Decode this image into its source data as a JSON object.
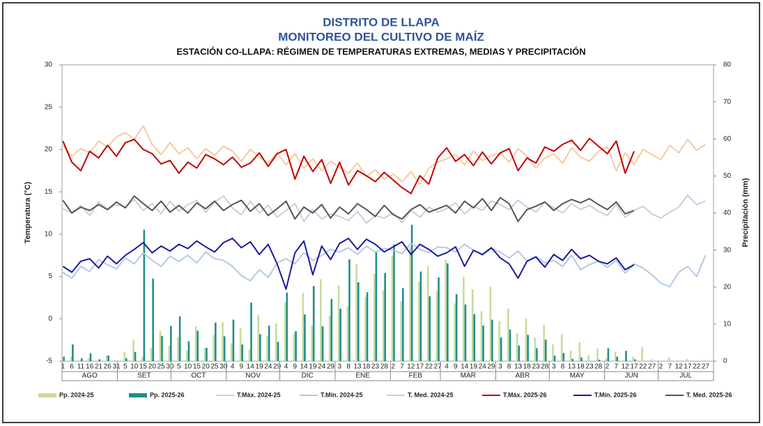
{
  "chart_data": {
    "type": "combo",
    "title": "DISTRITO DE LLAPA",
    "subtitle": "MONITOREO DEL CULTIVO DE MAÍZ",
    "subtitle2": "ESTACIÓN CO-LLAPA: RÉGIMEN DE TEMPERATURAS EXTREMAS, MEDIAS Y PRECIPITACIÓN",
    "ylabel": "Temperatura (°C)",
    "y2label": "Precipitación (mm)",
    "ylim": [
      -5,
      30
    ],
    "yticks": [
      -5,
      0,
      5,
      10,
      15,
      20,
      25,
      30
    ],
    "y2lim": [
      0,
      80
    ],
    "y2ticks": [
      0,
      10,
      20,
      30,
      40,
      50,
      60,
      70,
      80
    ],
    "categories": [
      1,
      6,
      11,
      16,
      21,
      26,
      31,
      5,
      10,
      15,
      20,
      25,
      30,
      5,
      10,
      15,
      20,
      25,
      30,
      4,
      9,
      14,
      19,
      24,
      29,
      4,
      9,
      14,
      19,
      24,
      29,
      3,
      8,
      13,
      18,
      23,
      28,
      2,
      7,
      12,
      17,
      22,
      27,
      4,
      9,
      14,
      19,
      24,
      29,
      3,
      8,
      13,
      18,
      23,
      28,
      3,
      8,
      13,
      18,
      23,
      28,
      2,
      7,
      12,
      17,
      22,
      27,
      2,
      7,
      12,
      17,
      22,
      27
    ],
    "months": [
      "AGO",
      "SET",
      "OCT",
      "NOV",
      "DIC",
      "ENE",
      "FEB",
      "MAR",
      "ABR",
      "MAY",
      "JUN",
      "JUL"
    ],
    "series": [
      {
        "name": "Pp. 2024-25",
        "type": "bar",
        "axis": "y2",
        "color": "#c5dc9a",
        "values": [
          0.5,
          1.2,
          0,
          0.8,
          0,
          1.5,
          0.3,
          2.5,
          5.8,
          1.2,
          3.5,
          8.2,
          4.1,
          6.5,
          2.8,
          9.4,
          3.6,
          7.1,
          10.5,
          4.8,
          8.9,
          3.2,
          12.4,
          6.7,
          10.2,
          15.8,
          7.5,
          18.4,
          9.6,
          22.1,
          12.3,
          20.5,
          14.8,
          26.2,
          17.4,
          23.6,
          19.1,
          28.5,
          16.2,
          30.8,
          21.4,
          25.7,
          18.9,
          27.3,
          15.6,
          22.8,
          19.4,
          13.5,
          20.1,
          10.8,
          14.2,
          7.6,
          11.5,
          6.3,
          9.8,
          4.5,
          7.2,
          2.8,
          5.1,
          1.6,
          3.4,
          0.8,
          2.5,
          0,
          1.2,
          3.8,
          0.5,
          0,
          1.0,
          0,
          0.6,
          0,
          0.3
        ]
      },
      {
        "name": "Pp. 2025-26",
        "type": "bar",
        "axis": "y2",
        "color": "#1f8f8a",
        "values": [
          1.2,
          4.5,
          0.8,
          2.1,
          0.5,
          1.5,
          0,
          0.8,
          2.5,
          35.5,
          22.3,
          6.8,
          9.5,
          12.1,
          5.4,
          8.2,
          3.6,
          10.4,
          6.7,
          11.2,
          4.5,
          15.8,
          7.3,
          9.6,
          5.2,
          18.5,
          8.1,
          12.6,
          20.3,
          9.4,
          16.8,
          14.2,
          27.5,
          21.3,
          18.6,
          29.4,
          23.8,
          31.5,
          19.7,
          36.8,
          24.2,
          17.5,
          22.6,
          26.4,
          18.1,
          15.3,
          12.7,
          9.6,
          11.2,
          6.4,
          8.5,
          4.2,
          7.1,
          3.5,
          5.8,
          1.5,
          2.2,
          0.6,
          1.0,
          0,
          0.4,
          3.5,
          1.2,
          2.8,
          0.5,
          null,
          null,
          null,
          null,
          null,
          null,
          null,
          null
        ]
      },
      {
        "name": "T.Máx. 2024-25",
        "type": "line",
        "color": "#f8c9a0",
        "values": [
          20.5,
          19.2,
          20.1,
          19.6,
          21.0,
          20.3,
          21.5,
          22.0,
          21.2,
          22.8,
          20.6,
          19.4,
          20.8,
          19.5,
          20.2,
          18.9,
          20.1,
          19.3,
          20.4,
          19.8,
          18.6,
          20.0,
          19.1,
          18.4,
          19.6,
          18.2,
          19.5,
          17.8,
          18.9,
          17.5,
          18.6,
          17.9,
          17.2,
          18.4,
          16.8,
          17.6,
          16.5,
          17.1,
          16.2,
          17.4,
          15.9,
          17.8,
          18.5,
          18.9,
          19.4,
          18.2,
          19.8,
          18.7,
          19.3,
          19.6,
          18.5,
          20.1,
          19.2,
          17.8,
          19.0,
          19.5,
          18.4,
          20.2,
          19.1,
          18.6,
          19.8,
          20.3,
          17.5,
          19.6,
          18.2,
          20.0,
          19.4,
          18.8,
          20.5,
          19.6,
          21.2,
          19.9,
          20.6
        ]
      },
      {
        "name": "T.Mín. 2024-25",
        "type": "line",
        "color": "#b4c9e4",
        "values": [
          5.5,
          4.8,
          6.2,
          5.6,
          7.0,
          6.4,
          5.9,
          7.2,
          6.5,
          7.8,
          6.9,
          6.2,
          7.4,
          6.8,
          7.5,
          6.6,
          7.9,
          7.1,
          6.9,
          6.2,
          5.1,
          4.5,
          5.8,
          4.9,
          6.6,
          7.1,
          6.5,
          7.8,
          6.9,
          7.5,
          8.2,
          7.9,
          8.4,
          7.6,
          8.6,
          7.9,
          8.3,
          8.1,
          7.7,
          8.9,
          8.2,
          7.8,
          8.5,
          8.4,
          7.9,
          8.8,
          8.1,
          7.5,
          8.3,
          7.9,
          7.2,
          8.0,
          6.8,
          7.4,
          6.6,
          6.9,
          6.2,
          7.5,
          5.8,
          6.4,
          6.8,
          6.1,
          6.9,
          5.4,
          6.5,
          6.0,
          5.2,
          4.2,
          3.8,
          5.5,
          6.2,
          5.0,
          7.5
        ]
      },
      {
        "name": "T. Med. 2024-25",
        "type": "line",
        "color": "#d4c8e0",
        "values": [
          13.0,
          12.5,
          13.4,
          12.2,
          13.8,
          12.9,
          13.5,
          13.2,
          14.1,
          12.8,
          13.6,
          12.4,
          13.9,
          12.7,
          13.5,
          14.0,
          12.6,
          13.8,
          14.5,
          13.1,
          12.3,
          13.9,
          12.5,
          13.4,
          12.0,
          12.8,
          13.6,
          11.5,
          12.9,
          11.8,
          12.4,
          12.1,
          11.6,
          12.7,
          11.3,
          12.2,
          11.9,
          12.5,
          11.4,
          12.8,
          12.0,
          13.2,
          12.6,
          13.0,
          13.7,
          12.4,
          13.3,
          12.8,
          13.9,
          13.5,
          12.9,
          14.0,
          13.2,
          12.6,
          13.8,
          13.1,
          12.5,
          13.6,
          12.9,
          13.4,
          12.7,
          12.2,
          13.5,
          12.0,
          12.8,
          13.3,
          12.4,
          11.9,
          12.6,
          13.2,
          14.6,
          13.5,
          13.9
        ]
      },
      {
        "name": "T.Máx. 2025-26",
        "type": "line",
        "color": "#c00000",
        "values": [
          21.0,
          18.5,
          17.5,
          19.8,
          19.0,
          20.5,
          19.2,
          20.8,
          21.2,
          20.0,
          19.5,
          18.3,
          18.7,
          17.2,
          18.5,
          17.8,
          19.4,
          18.9,
          18.2,
          19.1,
          17.9,
          18.4,
          19.6,
          18.0,
          19.5,
          20.0,
          16.5,
          19.2,
          17.4,
          18.8,
          16.0,
          18.5,
          15.8,
          17.5,
          16.9,
          16.2,
          17.3,
          16.4,
          15.5,
          14.8,
          16.9,
          15.9,
          19.0,
          20.2,
          18.6,
          19.4,
          18.1,
          19.7,
          18.3,
          19.6,
          20.1,
          17.5,
          19.0,
          18.4,
          20.3,
          19.8,
          20.6,
          21.1,
          19.9,
          21.3,
          20.4,
          19.5,
          21.0,
          17.2,
          19.8,
          null,
          null,
          null,
          null,
          null,
          null,
          null,
          null
        ]
      },
      {
        "name": "T.Mín. 2025-26",
        "type": "line",
        "color": "#1a1a9c",
        "values": [
          6.2,
          5.5,
          6.8,
          7.1,
          6.0,
          7.4,
          6.5,
          7.5,
          8.2,
          9.0,
          7.8,
          8.6,
          8.0,
          8.8,
          8.3,
          9.2,
          8.5,
          7.9,
          9.0,
          9.5,
          8.4,
          9.1,
          7.6,
          8.8,
          6.5,
          3.5,
          7.8,
          9.2,
          5.2,
          8.6,
          7.0,
          8.9,
          9.5,
          8.2,
          9.4,
          8.8,
          7.9,
          8.5,
          9.1,
          7.6,
          8.8,
          8.2,
          7.4,
          7.8,
          8.5,
          6.2,
          8.1,
          7.6,
          8.4,
          7.2,
          6.5,
          4.8,
          6.8,
          7.3,
          6.1,
          7.6,
          6.9,
          8.2,
          7.1,
          7.5,
          6.8,
          6.5,
          7.2,
          5.8,
          6.4,
          null,
          null,
          null,
          null,
          null,
          null,
          null,
          null
        ]
      },
      {
        "name": "T. Med. 2025-26",
        "type": "line",
        "color": "#555555",
        "values": [
          14.0,
          12.5,
          13.2,
          12.8,
          13.5,
          12.9,
          13.8,
          13.1,
          14.5,
          13.6,
          12.8,
          13.9,
          12.6,
          13.4,
          12.5,
          13.7,
          13.0,
          13.9,
          12.8,
          13.5,
          14.0,
          12.7,
          13.6,
          12.2,
          13.0,
          13.9,
          11.8,
          13.2,
          12.5,
          13.5,
          11.9,
          13.2,
          12.4,
          13.6,
          12.9,
          12.1,
          13.4,
          12.3,
          11.8,
          12.9,
          13.5,
          12.6,
          13.0,
          13.4,
          12.5,
          13.9,
          13.1,
          14.2,
          12.8,
          14.3,
          13.6,
          11.5,
          12.9,
          13.3,
          13.8,
          12.8,
          13.6,
          14.1,
          13.7,
          14.2,
          13.5,
          12.9,
          13.8,
          12.4,
          12.8,
          null,
          null,
          null,
          null,
          null,
          null,
          null,
          null
        ]
      }
    ]
  }
}
